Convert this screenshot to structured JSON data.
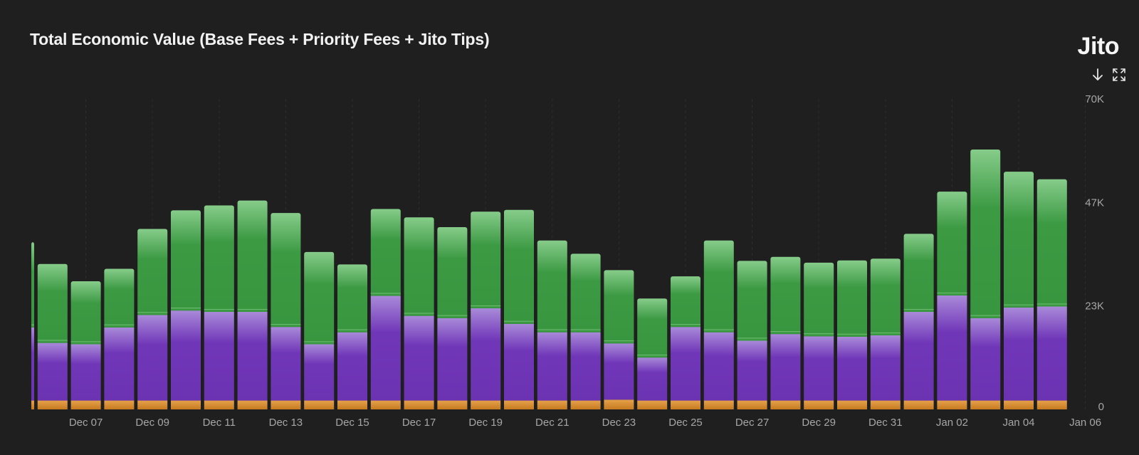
{
  "header": {
    "title": "Total Economic Value (Base Fees + Priority Fees + Jito Tips)",
    "logo_text": "Jito",
    "download_icon": "arrow-down-icon",
    "fullscreen_icon": "expand-icon"
  },
  "chart_data": {
    "type": "bar",
    "stacked": true,
    "categories": [
      "Dec 05",
      "Dec 06",
      "Dec 07",
      "Dec 08",
      "Dec 09",
      "Dec 10",
      "Dec 11",
      "Dec 12",
      "Dec 13",
      "Dec 14",
      "Dec 15",
      "Dec 16",
      "Dec 17",
      "Dec 18",
      "Dec 19",
      "Dec 20",
      "Dec 21",
      "Dec 22",
      "Dec 23",
      "Dec 24",
      "Dec 25",
      "Dec 26",
      "Dec 27",
      "Dec 28",
      "Dec 29",
      "Dec 30",
      "Dec 31",
      "Jan 01",
      "Jan 02",
      "Jan 03",
      "Jan 04",
      "Jan 05"
    ],
    "x_tick_labels": [
      "Dec 07",
      "Dec 09",
      "Dec 11",
      "Dec 13",
      "Dec 15",
      "Dec 17",
      "Dec 19",
      "Dec 21",
      "Dec 23",
      "Dec 25",
      "Dec 27",
      "Dec 29",
      "Dec 31",
      "Jan 02",
      "Jan 04",
      "Jan 06"
    ],
    "y_tick_labels": [
      "0",
      "23K",
      "47K",
      "70K"
    ],
    "ylim": [
      0,
      70000
    ],
    "first_bar_partial": true,
    "series": [
      {
        "color": "#d88a2a",
        "values": [
          2000,
          2000,
          2000,
          2000,
          2000,
          2000,
          2000,
          2000,
          2000,
          2000,
          2000,
          2000,
          2000,
          2000,
          2000,
          2000,
          2000,
          2000,
          2200,
          2000,
          2000,
          2000,
          2000,
          2000,
          2000,
          2000,
          2000,
          2000,
          2000,
          2000,
          2000,
          2000
        ]
      },
      {
        "color": "#7b3fc2",
        "values": [
          16500,
          13000,
          12700,
          16500,
          19300,
          20300,
          20000,
          20000,
          16600,
          12700,
          15400,
          23600,
          19100,
          18600,
          20800,
          17300,
          15400,
          15400,
          12700,
          9700,
          16600,
          15400,
          13500,
          15000,
          14500,
          14400,
          14700,
          20000,
          23700,
          18600,
          21000,
          21200
        ]
      },
      {
        "color": "#3f9f46",
        "values": [
          19200,
          17800,
          14200,
          13200,
          19400,
          22600,
          24000,
          25100,
          25700,
          20800,
          15300,
          19600,
          22200,
          20500,
          21800,
          25700,
          20700,
          17700,
          16500,
          13300,
          11400,
          20700,
          18000,
          17400,
          16600,
          17200,
          17300,
          17600,
          23400,
          38000,
          30600,
          28700
        ]
      }
    ]
  }
}
